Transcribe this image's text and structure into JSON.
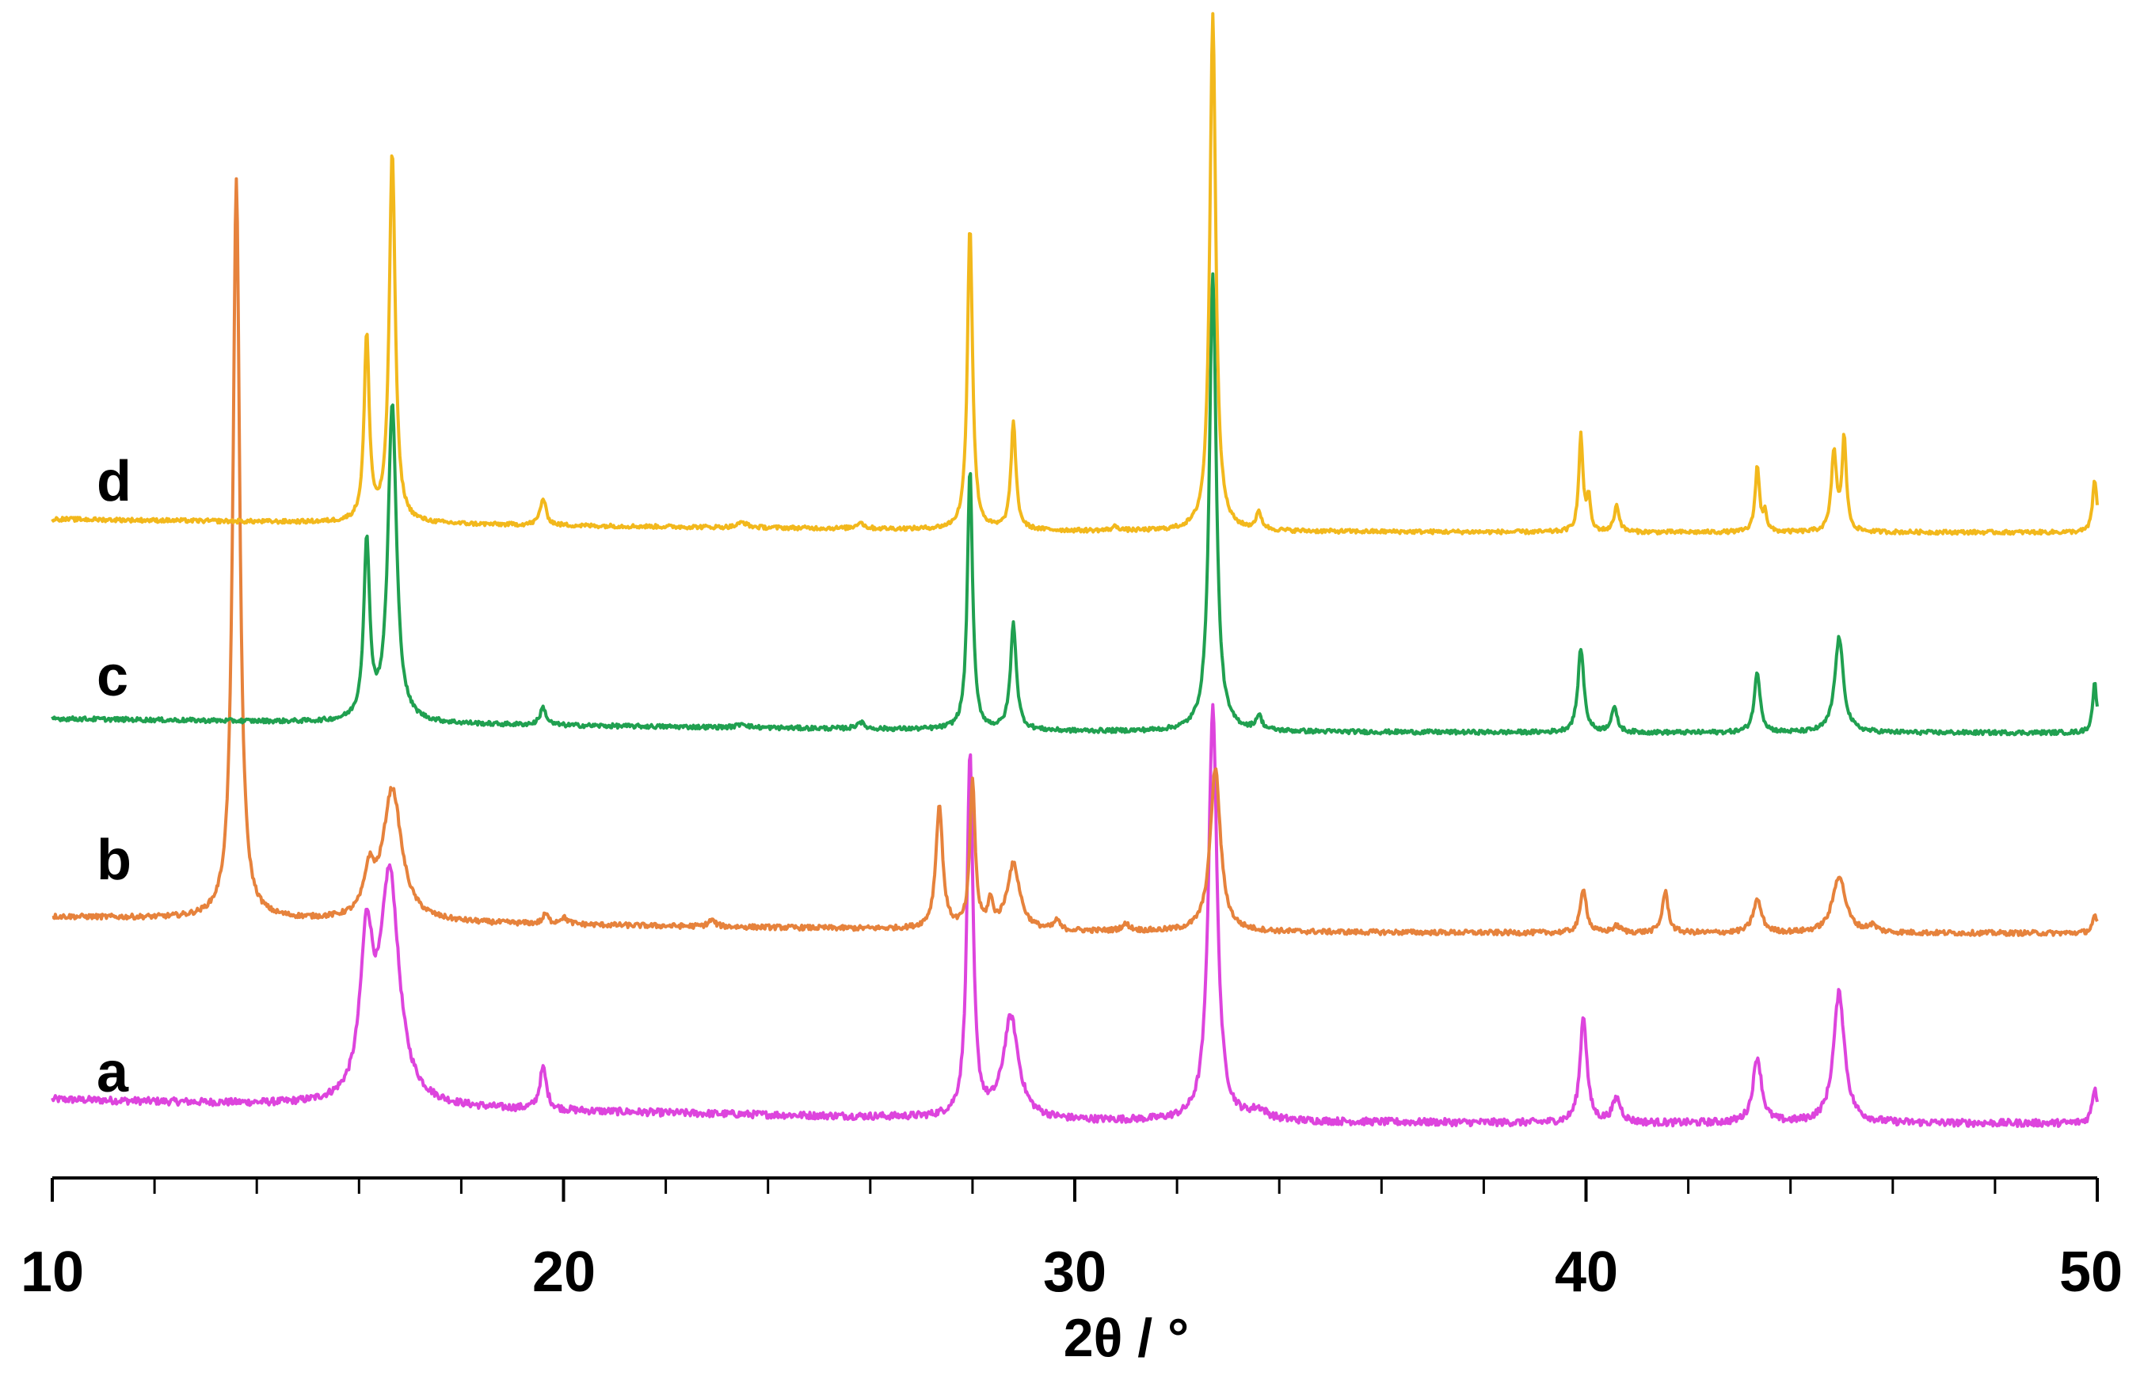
{
  "chart_data": {
    "type": "line",
    "title": "",
    "xlabel": "2θ / °",
    "ylabel": "",
    "xlim": [
      10,
      50
    ],
    "x_ticks_major": [
      10,
      20,
      30,
      40,
      50
    ],
    "x_tick_labels": [
      "10",
      "20",
      "30",
      "40",
      "50"
    ],
    "x_minor_step": 2,
    "grid": false,
    "legend": "none",
    "series": [
      {
        "name": "a",
        "color": "#DD44DD",
        "baseline": [
          [
            10,
            0.02
          ],
          [
            20,
            0.01
          ],
          [
            30,
            0.002
          ],
          [
            40,
            0.0
          ],
          [
            50,
            0.0
          ]
        ],
        "peaks": [
          [
            16.15,
            0.13,
            0.15
          ],
          [
            16.6,
            0.19,
            0.22
          ],
          [
            19.6,
            0.035,
            0.08
          ],
          [
            27.95,
            0.305,
            0.07
          ],
          [
            28.75,
            0.085,
            0.18
          ],
          [
            32.7,
            0.35,
            0.1
          ],
          [
            33.6,
            0.008,
            0.2
          ],
          [
            39.95,
            0.09,
            0.08
          ],
          [
            40.6,
            0.02,
            0.1
          ],
          [
            43.35,
            0.055,
            0.1
          ],
          [
            44.95,
            0.11,
            0.13
          ],
          [
            49.95,
            0.03,
            0.06
          ]
        ]
      },
      {
        "name": "b",
        "color": "#E6823C",
        "baseline": [
          [
            10,
            0.02
          ],
          [
            20,
            0.01
          ],
          [
            30,
            0.002
          ],
          [
            40,
            0.0
          ],
          [
            50,
            0.0
          ]
        ],
        "peaks": [
          [
            13.6,
            0.9,
            0.08
          ],
          [
            16.2,
            0.05,
            0.12
          ],
          [
            16.65,
            0.16,
            0.22
          ],
          [
            19.65,
            0.012,
            0.06
          ],
          [
            20.0,
            0.008,
            0.1
          ],
          [
            22.9,
            0.008,
            0.08
          ],
          [
            27.35,
            0.15,
            0.08
          ],
          [
            28.0,
            0.18,
            0.06
          ],
          [
            28.35,
            0.03,
            0.06
          ],
          [
            28.8,
            0.08,
            0.15
          ],
          [
            29.65,
            0.012,
            0.06
          ],
          [
            31.0,
            0.008,
            0.1
          ],
          [
            32.75,
            0.2,
            0.12
          ],
          [
            39.95,
            0.055,
            0.07
          ],
          [
            40.6,
            0.008,
            0.1
          ],
          [
            41.55,
            0.05,
            0.07
          ],
          [
            43.35,
            0.04,
            0.1
          ],
          [
            44.95,
            0.07,
            0.15
          ],
          [
            45.6,
            0.008,
            0.1
          ],
          [
            49.95,
            0.02,
            0.06
          ]
        ]
      },
      {
        "name": "c",
        "color": "#20A050",
        "baseline": [
          [
            10,
            0.02
          ],
          [
            20,
            0.01
          ],
          [
            30,
            0.002
          ],
          [
            40,
            0.0
          ],
          [
            50,
            0.0
          ]
        ],
        "peaks": [
          [
            16.15,
            0.25,
            0.07
          ],
          [
            16.65,
            0.45,
            0.1
          ],
          [
            19.6,
            0.025,
            0.07
          ],
          [
            23.5,
            0.006,
            0.1
          ],
          [
            25.8,
            0.01,
            0.08
          ],
          [
            27.95,
            0.37,
            0.06
          ],
          [
            28.8,
            0.15,
            0.07
          ],
          [
            32.7,
            0.65,
            0.08
          ],
          [
            33.6,
            0.02,
            0.07
          ],
          [
            39.9,
            0.12,
            0.07
          ],
          [
            40.55,
            0.035,
            0.07
          ],
          [
            43.35,
            0.085,
            0.07
          ],
          [
            44.95,
            0.135,
            0.1
          ],
          [
            49.95,
            0.07,
            0.05
          ]
        ]
      },
      {
        "name": "d",
        "color": "#F2B81C",
        "baseline": [
          [
            10,
            0.02
          ],
          [
            20,
            0.01
          ],
          [
            30,
            0.002
          ],
          [
            40,
            0.0
          ],
          [
            50,
            0.0
          ]
        ],
        "peaks": [
          [
            16.15,
            0.28,
            0.06
          ],
          [
            16.65,
            0.56,
            0.07
          ],
          [
            19.6,
            0.04,
            0.07
          ],
          [
            23.5,
            0.008,
            0.1
          ],
          [
            25.8,
            0.01,
            0.08
          ],
          [
            27.95,
            0.46,
            0.06
          ],
          [
            28.8,
            0.16,
            0.06
          ],
          [
            30.8,
            0.006,
            0.08
          ],
          [
            32.7,
            0.78,
            0.07
          ],
          [
            33.6,
            0.025,
            0.07
          ],
          [
            39.9,
            0.145,
            0.05
          ],
          [
            40.05,
            0.05,
            0.04
          ],
          [
            40.6,
            0.04,
            0.06
          ],
          [
            43.35,
            0.1,
            0.05
          ],
          [
            43.5,
            0.03,
            0.04
          ],
          [
            44.85,
            0.12,
            0.06
          ],
          [
            45.05,
            0.14,
            0.05
          ],
          [
            49.95,
            0.08,
            0.05
          ]
        ]
      }
    ]
  }
}
